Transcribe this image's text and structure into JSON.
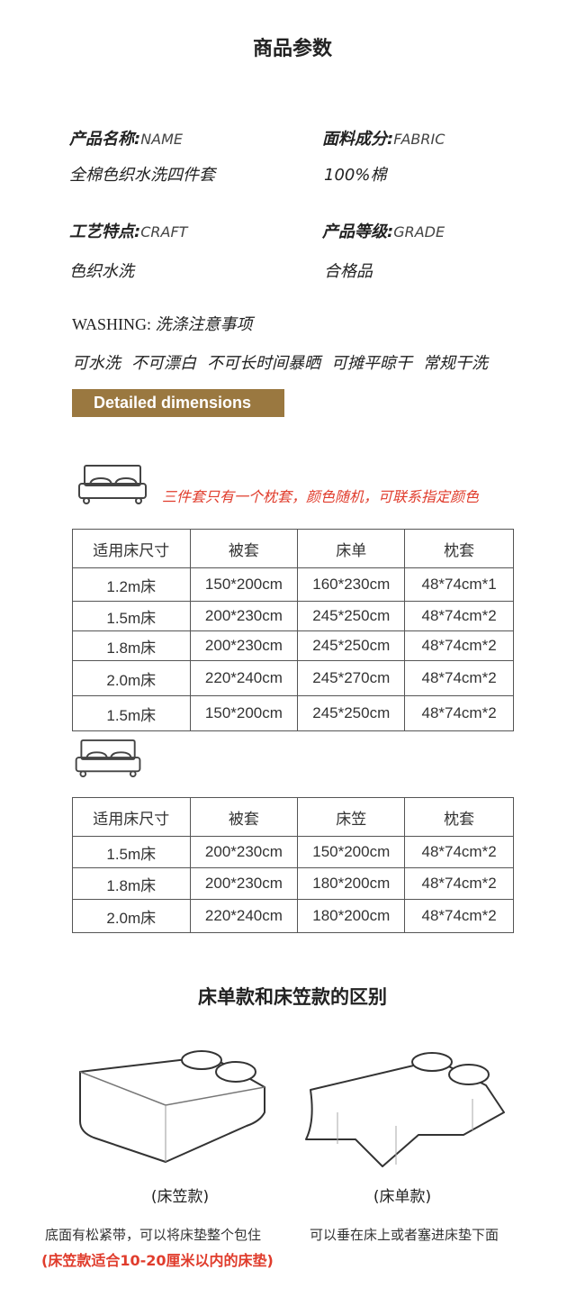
{
  "header": {
    "title": "商品参数"
  },
  "params": [
    {
      "label": "产品名称:",
      "label_en": "NAME",
      "value": "全棉色织水洗四件套"
    },
    {
      "label": "面料成分:",
      "label_en": "FABRIC",
      "value": "100%棉"
    },
    {
      "label": "工艺特点:",
      "label_en": "CRAFT",
      "value": "色织水洗"
    },
    {
      "label": "产品等级:",
      "label_en": "GRADE",
      "value": "合格品"
    }
  ],
  "washing": {
    "label": "WASHING:",
    "label_cn": "洗涤注意事项",
    "items": [
      "可水洗",
      "不可漂白",
      "不可长时间暴晒",
      "可摊平晾干",
      "常规干洗"
    ]
  },
  "dimensions_button": "Detailed dimensions",
  "note_red": "三件套只有一个枕套，颜色随机，可联系指定颜色",
  "table1": {
    "headers": [
      "适用床尺寸",
      "被套",
      "床单",
      "枕套"
    ],
    "rows": [
      [
        "1.2m床",
        "150*200cm",
        "160*230cm",
        "48*74cm*1"
      ],
      [
        "1.5m床",
        "200*230cm",
        "245*250cm",
        "48*74cm*2"
      ],
      [
        "1.8m床",
        "200*230cm",
        "245*250cm",
        "48*74cm*2"
      ],
      [
        "2.0m床",
        "220*240cm",
        "245*270cm",
        "48*74cm*2"
      ],
      [
        "1.5m床",
        "150*200cm",
        "245*250cm",
        "48*74cm*2"
      ]
    ]
  },
  "table2": {
    "headers": [
      "适用床尺寸",
      "被套",
      "床笠",
      "枕套"
    ],
    "rows": [
      [
        "1.5m床",
        "200*230cm",
        "150*200cm",
        "48*74cm*2"
      ],
      [
        "1.8m床",
        "200*230cm",
        "180*200cm",
        "48*74cm*2"
      ],
      [
        "2.0m床",
        "220*240cm",
        "180*200cm",
        "48*74cm*2"
      ]
    ]
  },
  "compare": {
    "title": "床单款和床笠款的区别",
    "fitted": {
      "caption": "(床笠款)",
      "desc": "底面有松紧带，可以将床垫整个包住",
      "note": "(床笠款适合10-20厘米以内的床垫)"
    },
    "flat": {
      "caption": "(床单款)",
      "desc": "可以垂在床上或者塞进床垫下面"
    }
  },
  "colors": {
    "accent": "#9a7840",
    "red": "#e03c2c"
  }
}
